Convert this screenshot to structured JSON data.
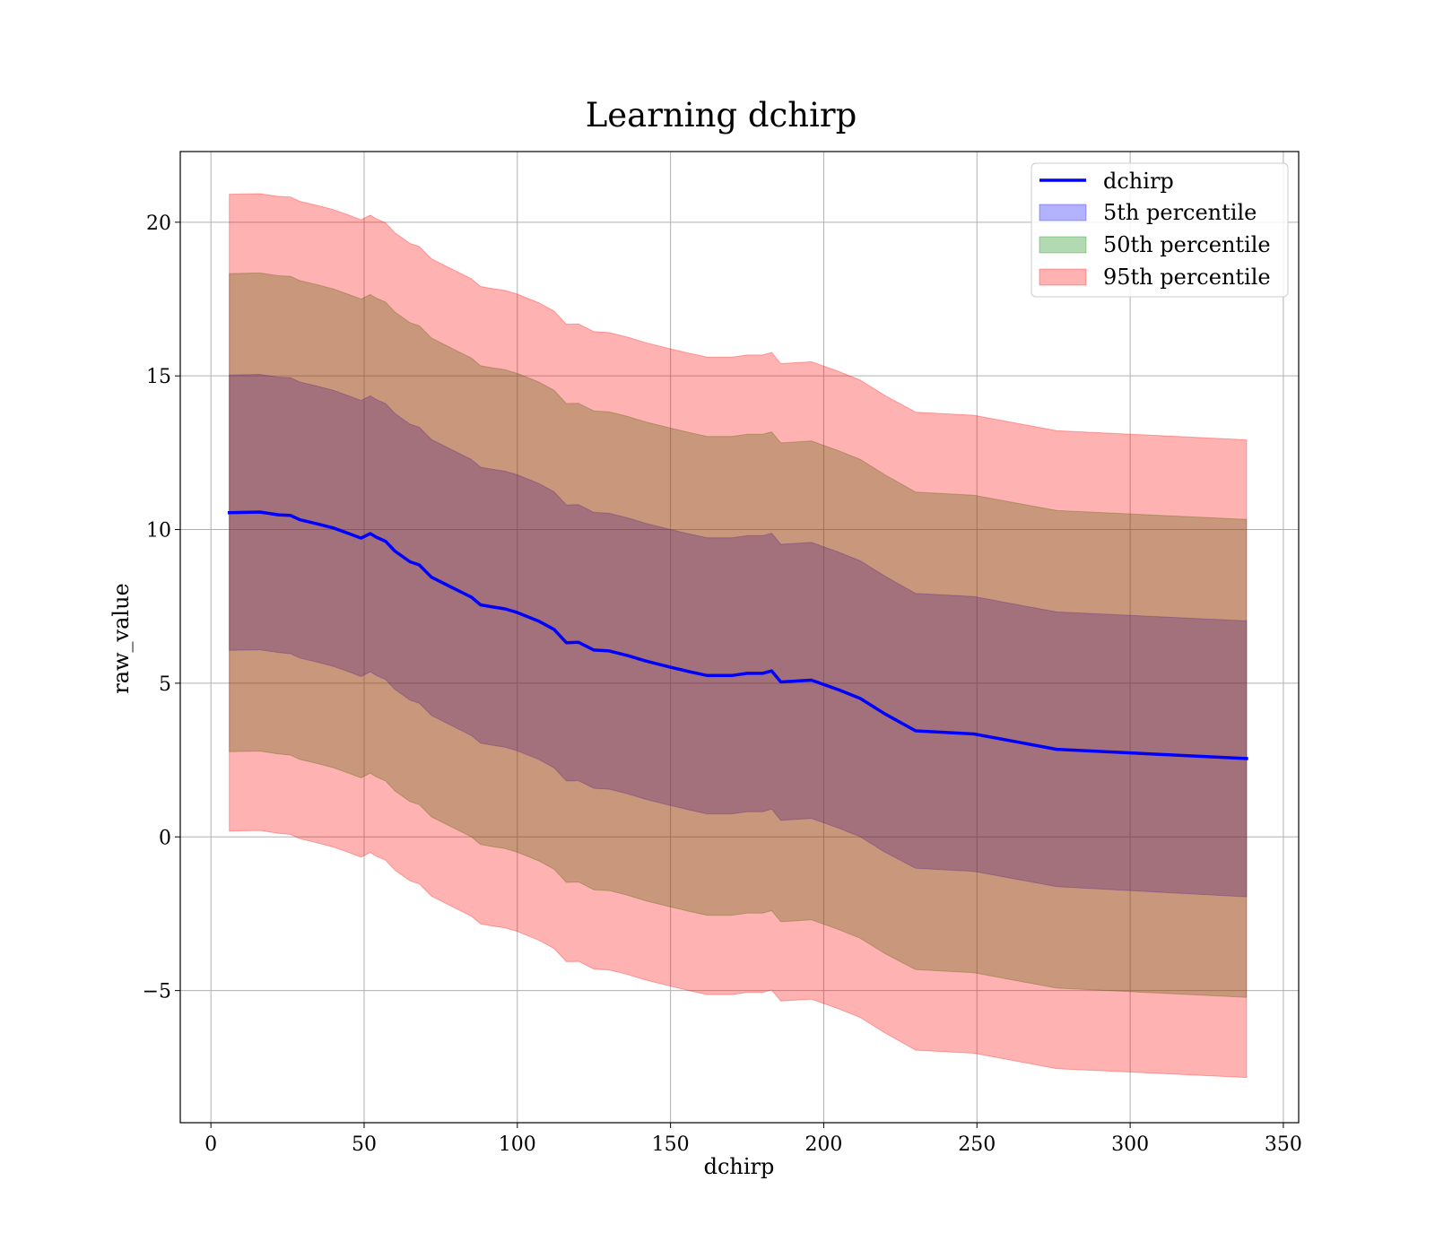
{
  "chart_data": {
    "type": "area",
    "title": "Learning dchirp",
    "xlabel": "dchirp",
    "ylabel": "raw_value",
    "xlim": [
      -10,
      355
    ],
    "ylim": [
      -9.3,
      22.3
    ],
    "xticks": [
      0,
      50,
      100,
      150,
      200,
      250,
      300,
      350
    ],
    "xtick_labels": [
      "0",
      "50",
      "100",
      "150",
      "200",
      "250",
      "300",
      "350"
    ],
    "yticks": [
      -5,
      0,
      5,
      10,
      15,
      20
    ],
    "ytick_labels": [
      "−5",
      "0",
      "5",
      "10",
      "15",
      "20"
    ],
    "grid": true,
    "legend_position": "top-right",
    "x": [
      6,
      16,
      22,
      26,
      29,
      35,
      40,
      45,
      49,
      52,
      54,
      57,
      60,
      65,
      68,
      72,
      78,
      85,
      88,
      92,
      96,
      100,
      107,
      112,
      116,
      120,
      125,
      130,
      136,
      142,
      150,
      156,
      162,
      170,
      175,
      180,
      183,
      186,
      196,
      205,
      212,
      220,
      230,
      249,
      276,
      338
    ],
    "line": {
      "name": "dchirp",
      "color": "#0000ff",
      "values": [
        10.55,
        10.57,
        10.48,
        10.46,
        10.32,
        10.18,
        10.05,
        9.87,
        9.72,
        9.87,
        9.75,
        9.62,
        9.3,
        8.95,
        8.85,
        8.45,
        8.15,
        7.8,
        7.55,
        7.48,
        7.42,
        7.3,
        7.02,
        6.75,
        6.32,
        6.33,
        6.08,
        6.05,
        5.9,
        5.72,
        5.52,
        5.38,
        5.25,
        5.25,
        5.32,
        5.32,
        5.4,
        5.04,
        5.1,
        4.78,
        4.5,
        4.0,
        3.45,
        3.35,
        2.85,
        2.55
      ]
    },
    "series": [
      {
        "name": "5th percentile",
        "color": "#0000ff",
        "alpha": 0.3,
        "lower": [
          6.07,
          6.09,
          6.0,
          5.96,
          5.82,
          5.68,
          5.55,
          5.37,
          5.22,
          5.37,
          5.25,
          5.12,
          4.8,
          4.45,
          4.35,
          3.95,
          3.65,
          3.3,
          3.05,
          2.98,
          2.92,
          2.8,
          2.52,
          2.25,
          1.82,
          1.83,
          1.58,
          1.55,
          1.4,
          1.22,
          1.02,
          0.88,
          0.75,
          0.75,
          0.82,
          0.82,
          0.9,
          0.54,
          0.6,
          0.28,
          0.0,
          -0.5,
          -1.02,
          -1.12,
          -1.62,
          -1.95
        ],
        "upper": [
          15.03,
          15.05,
          14.96,
          14.94,
          14.8,
          14.66,
          14.53,
          14.35,
          14.2,
          14.35,
          14.23,
          14.1,
          13.78,
          13.43,
          13.33,
          12.93,
          12.63,
          12.28,
          12.03,
          11.96,
          11.9,
          11.78,
          11.5,
          11.23,
          10.8,
          10.81,
          10.56,
          10.53,
          10.38,
          10.2,
          10.0,
          9.86,
          9.73,
          9.73,
          9.8,
          9.8,
          9.88,
          9.52,
          9.58,
          9.26,
          8.98,
          8.48,
          7.92,
          7.82,
          7.32,
          7.03
        ]
      },
      {
        "name": "50th percentile",
        "color": "#008000",
        "alpha": 0.3,
        "lower": [
          2.77,
          2.79,
          2.7,
          2.66,
          2.52,
          2.38,
          2.25,
          2.07,
          1.92,
          2.07,
          1.95,
          1.82,
          1.5,
          1.15,
          1.05,
          0.65,
          0.35,
          0.0,
          -0.25,
          -0.32,
          -0.38,
          -0.5,
          -0.78,
          -1.05,
          -1.48,
          -1.47,
          -1.72,
          -1.75,
          -1.9,
          -2.08,
          -2.28,
          -2.42,
          -2.55,
          -2.55,
          -2.48,
          -2.48,
          -2.4,
          -2.76,
          -2.7,
          -3.02,
          -3.3,
          -3.8,
          -4.32,
          -4.42,
          -4.92,
          -5.22
        ],
        "upper": [
          18.33,
          18.35,
          18.26,
          18.24,
          18.1,
          17.96,
          17.83,
          17.65,
          17.5,
          17.65,
          17.53,
          17.4,
          17.08,
          16.73,
          16.63,
          16.23,
          15.93,
          15.58,
          15.33,
          15.26,
          15.2,
          15.08,
          14.8,
          14.53,
          14.1,
          14.11,
          13.86,
          13.83,
          13.68,
          13.5,
          13.3,
          13.16,
          13.03,
          13.03,
          13.1,
          13.1,
          13.18,
          12.82,
          12.88,
          12.56,
          12.28,
          11.78,
          11.22,
          11.12,
          10.62,
          10.33
        ]
      },
      {
        "name": "95th percentile",
        "color": "#ff0000",
        "alpha": 0.3,
        "lower": [
          0.19,
          0.21,
          0.12,
          0.08,
          -0.06,
          -0.2,
          -0.33,
          -0.51,
          -0.66,
          -0.51,
          -0.63,
          -0.76,
          -1.08,
          -1.43,
          -1.53,
          -1.93,
          -2.23,
          -2.58,
          -2.83,
          -2.9,
          -2.96,
          -3.08,
          -3.36,
          -3.63,
          -4.06,
          -4.05,
          -4.3,
          -4.33,
          -4.48,
          -4.66,
          -4.86,
          -5.0,
          -5.13,
          -5.13,
          -5.06,
          -5.06,
          -4.98,
          -5.34,
          -5.28,
          -5.6,
          -5.88,
          -6.38,
          -6.94,
          -7.04,
          -7.54,
          -7.83
        ],
        "upper": [
          20.91,
          20.93,
          20.84,
          20.82,
          20.68,
          20.54,
          20.41,
          20.23,
          20.08,
          20.23,
          20.11,
          19.98,
          19.66,
          19.31,
          19.21,
          18.81,
          18.51,
          18.16,
          17.91,
          17.84,
          17.78,
          17.66,
          17.38,
          17.11,
          16.68,
          16.69,
          16.44,
          16.41,
          16.26,
          16.08,
          15.88,
          15.74,
          15.61,
          15.61,
          15.68,
          15.68,
          15.76,
          15.4,
          15.46,
          15.14,
          14.86,
          14.36,
          13.82,
          13.72,
          13.22,
          12.92
        ]
      }
    ]
  }
}
